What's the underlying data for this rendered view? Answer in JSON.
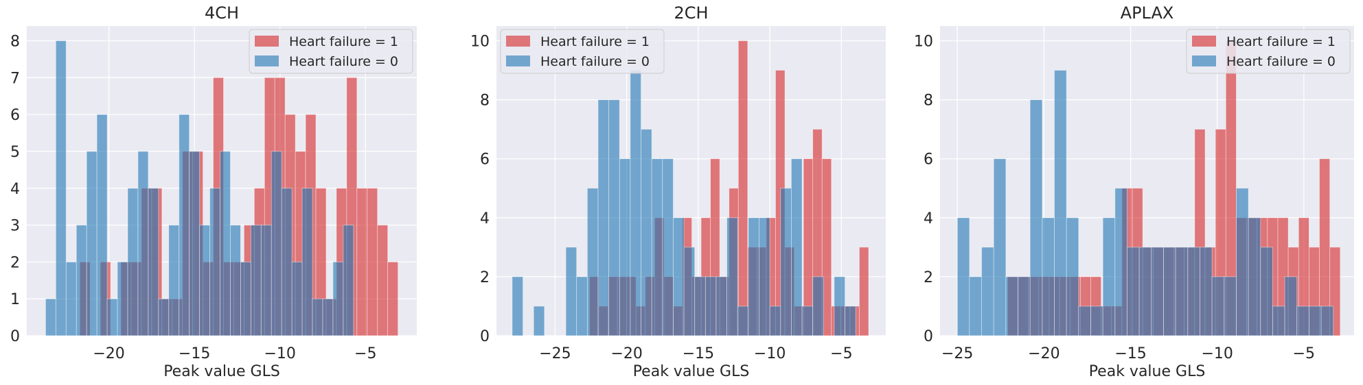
{
  "colors": {
    "hf1": "#d62728",
    "hf0": "#1f77b4",
    "background": "#eaeaf2",
    "grid": "#ffffff",
    "text": "#262626"
  },
  "chart_data": [
    {
      "type": "bar",
      "title": "4CH",
      "xlabel": "Peak value GLS",
      "ylabel": "",
      "xlim": [
        -24.8,
        -2.0
      ],
      "ylim": [
        0,
        8.4
      ],
      "xticks": [
        -20,
        -15,
        -10,
        -5
      ],
      "xtick_labels": [
        "−20",
        "−15",
        "−10",
        "−5"
      ],
      "yticks": [
        0,
        1,
        2,
        3,
        4,
        5,
        6,
        7,
        8
      ],
      "ytick_labels": [
        "0",
        "1",
        "2",
        "3",
        "4",
        "5",
        "6",
        "7",
        "8"
      ],
      "legend_position": "top-right",
      "grid": true,
      "series": [
        {
          "name": "Heart failure = 1",
          "color": "#d62728",
          "bin_edges": [
            -21.7,
            -21.1,
            -20.5,
            -19.9,
            -19.3,
            -18.7,
            -18.1,
            -17.5,
            -16.9,
            -16.3,
            -15.7,
            -15.1,
            -14.5,
            -13.9,
            -13.3,
            -12.7,
            -12.1,
            -11.5,
            -10.9,
            -10.3,
            -9.7,
            -9.1,
            -8.5,
            -7.9,
            -7.3,
            -6.7,
            -6.1,
            -5.5,
            -4.9,
            -4.3,
            -3.7,
            -3.1
          ],
          "counts": [
            2,
            0,
            2,
            0,
            2,
            2,
            4,
            4,
            1,
            1,
            5,
            5,
            2,
            7,
            2,
            2,
            3,
            4,
            7,
            7,
            6,
            5,
            6,
            4,
            1,
            4,
            7,
            4,
            4,
            3,
            2
          ]
        },
        {
          "name": "Heart failure = 0",
          "color": "#1f77b4",
          "bin_edges": [
            -23.7,
            -23.1,
            -22.5,
            -21.9,
            -21.3,
            -20.7,
            -20.1,
            -19.5,
            -18.9,
            -18.3,
            -17.7,
            -17.1,
            -16.5,
            -15.9,
            -15.3,
            -14.7,
            -14.1,
            -13.5,
            -12.9,
            -12.3,
            -11.7,
            -11.1,
            -10.5,
            -9.9,
            -9.3,
            -8.7,
            -8.1,
            -7.5,
            -6.9,
            -6.3,
            -5.7
          ],
          "counts": [
            1,
            8,
            2,
            3,
            5,
            6,
            1,
            2,
            4,
            5,
            4,
            1,
            3,
            6,
            5,
            3,
            4,
            5,
            3,
            2,
            3,
            3,
            5,
            4,
            2,
            4,
            1,
            1,
            2,
            3
          ]
        }
      ]
    },
    {
      "type": "bar",
      "title": "2CH",
      "xlabel": "Peak value GLS",
      "ylabel": "",
      "xlim": [
        -29.1,
        -1.9
      ],
      "ylim": [
        0,
        10.5
      ],
      "xticks": [
        -25,
        -20,
        -15,
        -10,
        -5
      ],
      "xtick_labels": [
        "−25",
        "−20",
        "−15",
        "−10",
        "−5"
      ],
      "yticks": [
        0,
        2,
        4,
        6,
        8,
        10
      ],
      "ytick_labels": [
        "0",
        "2",
        "4",
        "6",
        "8",
        "10"
      ],
      "legend_position": "top-left",
      "grid": true,
      "series": [
        {
          "name": "Heart failure = 1",
          "color": "#d62728",
          "bin_edges": [
            -22.6,
            -21.95,
            -21.3,
            -20.65,
            -20.0,
            -19.35,
            -18.7,
            -18.05,
            -17.4,
            -16.75,
            -16.1,
            -15.45,
            -14.8,
            -14.15,
            -13.5,
            -12.85,
            -12.2,
            -11.55,
            -10.9,
            -10.25,
            -9.6,
            -8.95,
            -8.3,
            -7.65,
            -7.0,
            -6.35,
            -5.7,
            -5.05,
            -4.4,
            -3.75,
            -3.1
          ],
          "counts": [
            2,
            1,
            2,
            2,
            2,
            1,
            2,
            4,
            2,
            1,
            4,
            2,
            4,
            6,
            2,
            5,
            10,
            3,
            3,
            4,
            9,
            3,
            1,
            6,
            7,
            6,
            1,
            1,
            1,
            3
          ]
        },
        {
          "name": "Heart failure = 0",
          "color": "#1f77b4",
          "bin_edges": [
            -28.0,
            -27.25,
            -26.5,
            -25.75,
            -25.0,
            -24.25,
            -23.5,
            -22.75,
            -22.0,
            -21.25,
            -20.5,
            -19.75,
            -19.0,
            -18.25,
            -17.5,
            -16.75,
            -16.0,
            -15.25,
            -14.5,
            -13.75,
            -13.0,
            -12.25,
            -11.5,
            -10.75,
            -10.0,
            -9.25,
            -8.5,
            -7.75,
            -7.0,
            -6.25,
            -5.5,
            -4.75,
            -4.0
          ],
          "counts": [
            2,
            0,
            1,
            0,
            0,
            3,
            2,
            5,
            8,
            8,
            6,
            9,
            7,
            6,
            6,
            4,
            3,
            2,
            2,
            2,
            4,
            1,
            4,
            4,
            1,
            5,
            6,
            1,
            2,
            0,
            2,
            1
          ]
        }
      ]
    },
    {
      "type": "bar",
      "title": "APLAX",
      "xlabel": "Peak value GLS",
      "ylabel": "",
      "xlim": [
        -26.0,
        -2.1
      ],
      "ylim": [
        0,
        10.5
      ],
      "xticks": [
        -25,
        -20,
        -15,
        -10,
        -5
      ],
      "xtick_labels": [
        "−25",
        "−20",
        "−15",
        "−10",
        "−5"
      ],
      "yticks": [
        0,
        2,
        4,
        6,
        8,
        10
      ],
      "ytick_labels": [
        "0",
        "2",
        "4",
        "6",
        "8",
        "10"
      ],
      "legend_position": "top-right",
      "grid": true,
      "series": [
        {
          "name": "Heart failure = 1",
          "color": "#d62728",
          "bin_edges": [
            -22.1,
            -21.5,
            -20.9,
            -20.3,
            -19.7,
            -19.1,
            -18.5,
            -17.9,
            -17.3,
            -16.7,
            -16.1,
            -15.5,
            -14.9,
            -14.3,
            -13.7,
            -13.1,
            -12.5,
            -11.9,
            -11.3,
            -10.7,
            -10.1,
            -9.5,
            -8.9,
            -8.3,
            -7.7,
            -7.1,
            -6.5,
            -5.9,
            -5.3,
            -4.7,
            -4.1,
            -3.5,
            -2.9
          ],
          "counts": [
            2,
            2,
            2,
            2,
            2,
            2,
            2,
            2,
            2,
            1,
            1,
            5,
            5,
            3,
            3,
            3,
            3,
            3,
            7,
            3,
            7,
            10,
            4,
            4,
            4,
            4,
            4,
            3,
            4,
            3,
            6,
            3
          ]
        },
        {
          "name": "Heart failure = 0",
          "color": "#1f77b4",
          "bin_edges": [
            -25.0,
            -24.3,
            -23.6,
            -22.9,
            -22.2,
            -21.5,
            -20.8,
            -20.1,
            -19.4,
            -18.7,
            -18.0,
            -17.3,
            -16.6,
            -15.9,
            -15.2,
            -14.5,
            -13.8,
            -13.1,
            -12.4,
            -11.7,
            -11.0,
            -10.3,
            -9.6,
            -8.9,
            -8.2,
            -7.5,
            -6.8,
            -6.1,
            -5.4,
            -4.7,
            -4.0,
            -3.3
          ],
          "counts": [
            4,
            2,
            3,
            6,
            2,
            2,
            8,
            4,
            9,
            4,
            1,
            1,
            4,
            5,
            3,
            3,
            3,
            3,
            3,
            3,
            3,
            2,
            2,
            5,
            4,
            3,
            1,
            2,
            1,
            1,
            1
          ]
        }
      ]
    }
  ]
}
